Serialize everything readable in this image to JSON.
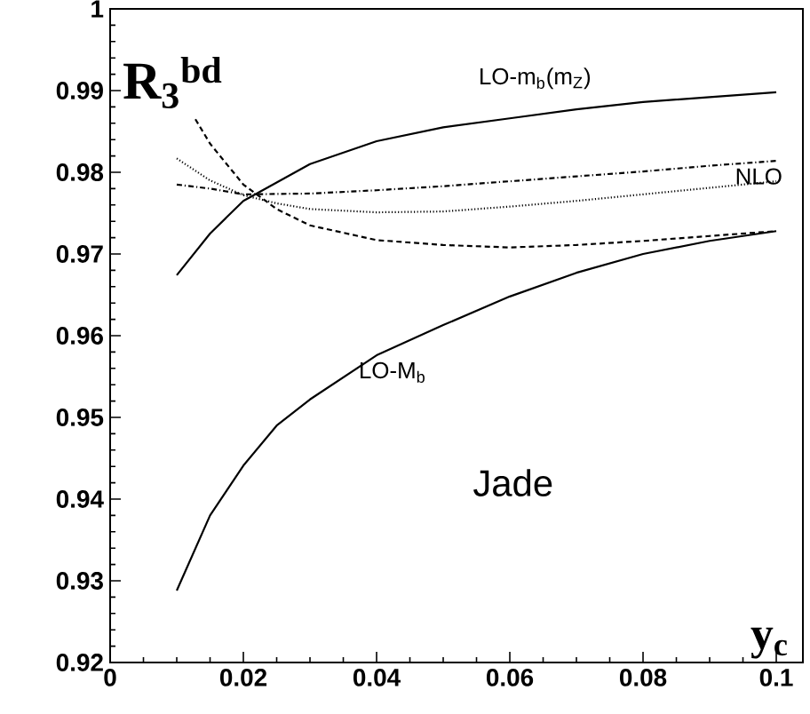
{
  "chart_data": {
    "type": "line",
    "xlabel": "y$_{c}$",
    "ylabel": "R$_{3}$$^{bd}$",
    "xlim": [
      0,
      0.104
    ],
    "ylim": [
      0.92,
      1
    ],
    "xticks": [
      0,
      0.02,
      0.04,
      0.06,
      0.08,
      0.1
    ],
    "yticks": [
      0.92,
      0.93,
      0.94,
      0.95,
      0.96,
      0.97,
      0.98,
      0.99,
      1
    ],
    "annotations": [
      "Jade"
    ],
    "series": [
      {
        "name": "LO-m$_{b}$(m$_{Z}$)",
        "color": "#000000",
        "line_style": "solid",
        "x": [
          0.01,
          0.015,
          0.02,
          0.03,
          0.04,
          0.05,
          0.06,
          0.07,
          0.08,
          0.09,
          0.1
        ],
        "values": [
          0.9674,
          0.9725,
          0.9765,
          0.981,
          0.9838,
          0.9855,
          0.9866,
          0.9877,
          0.9886,
          0.9892,
          0.9898
        ]
      },
      {
        "name": "LO-M$_{b}$",
        "color": "#000000",
        "line_style": "solid",
        "x": [
          0.01,
          0.015,
          0.02,
          0.025,
          0.03,
          0.04,
          0.05,
          0.06,
          0.07,
          0.08,
          0.09,
          0.1
        ],
        "values": [
          0.9288,
          0.938,
          0.9441,
          0.949,
          0.9522,
          0.9576,
          0.9613,
          0.9648,
          0.9677,
          0.97,
          0.9716,
          0.9728
        ]
      },
      {
        "color": "#000000",
        "line_style": "dashed",
        "x": [
          0.0128,
          0.015,
          0.02,
          0.025,
          0.03,
          0.04,
          0.05,
          0.06,
          0.07,
          0.08,
          0.09,
          0.1
        ],
        "values": [
          0.9865,
          0.9835,
          0.9785,
          0.9755,
          0.9735,
          0.9717,
          0.9711,
          0.9708,
          0.9711,
          0.9716,
          0.9722,
          0.9728
        ]
      },
      {
        "name": "NLO",
        "color": "#000000",
        "line_style": "dotted",
        "x": [
          0.01,
          0.015,
          0.02,
          0.025,
          0.03,
          0.04,
          0.05,
          0.06,
          0.07,
          0.08,
          0.09,
          0.1
        ],
        "values": [
          0.9817,
          0.979,
          0.9772,
          0.9762,
          0.9755,
          0.9751,
          0.9752,
          0.9758,
          0.9765,
          0.9773,
          0.9781,
          0.9789
        ]
      },
      {
        "color": "#000000",
        "line_style": "dashdot",
        "x": [
          0.01,
          0.015,
          0.02,
          0.03,
          0.04,
          0.05,
          0.06,
          0.07,
          0.08,
          0.09,
          0.1
        ],
        "values": [
          0.9785,
          0.978,
          0.9773,
          0.9774,
          0.9778,
          0.9783,
          0.9789,
          0.9795,
          0.9801,
          0.9808,
          0.9814
        ]
      }
    ]
  }
}
